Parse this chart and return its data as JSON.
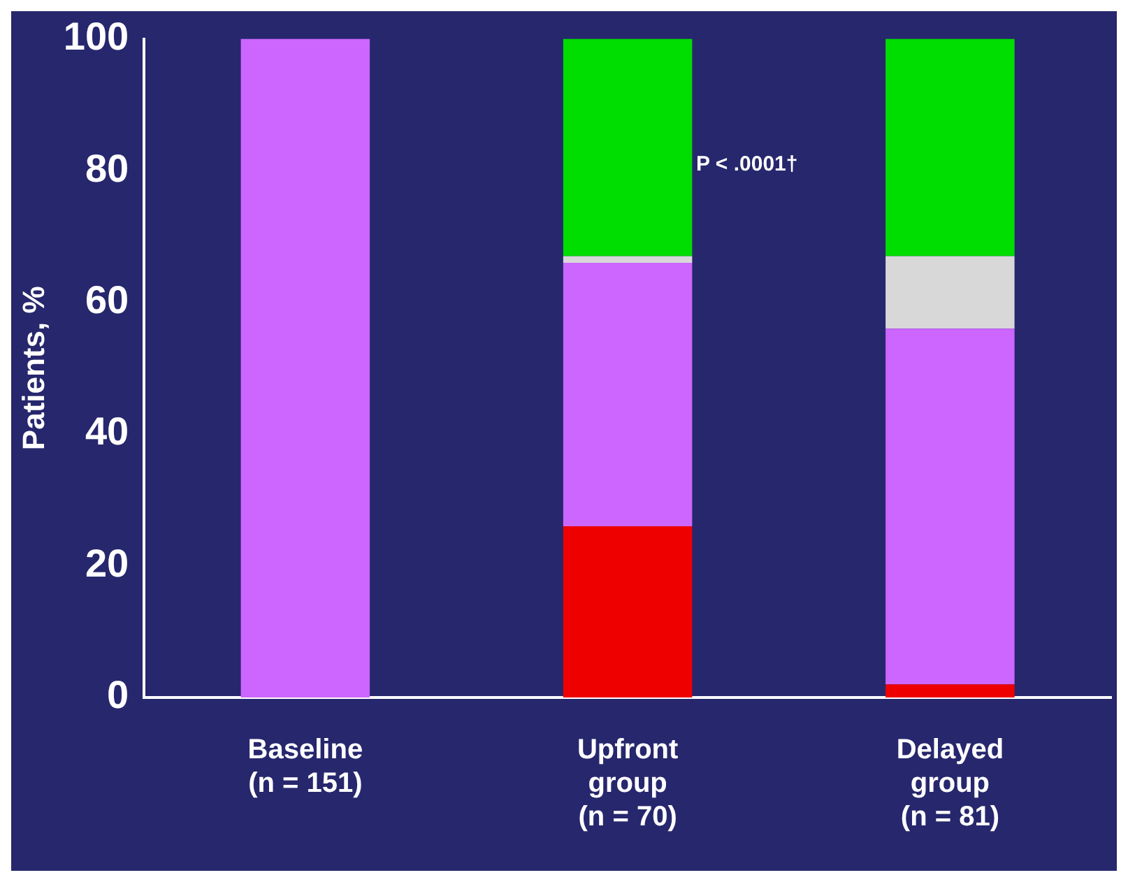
{
  "chart_data": {
    "type": "bar",
    "ylabel": "Patients, %",
    "categories": [
      "Baseline\n(n = 151)",
      "Upfront\ngroup\n(n = 70)",
      "Delayed\ngroup\n(n = 81)"
    ],
    "stacked": true,
    "series": [
      {
        "color": "#ee0000",
        "values": [
          0,
          26,
          2
        ]
      },
      {
        "color": "#cc66ff",
        "values": [
          100,
          40,
          54
        ]
      },
      {
        "color": "#d8d8d8",
        "values": [
          0,
          1,
          11
        ]
      },
      {
        "color": "#00dd00",
        "values": [
          0,
          33,
          33
        ]
      }
    ],
    "ylim": [
      0,
      100
    ],
    "yticks": [
      0,
      20,
      40,
      60,
      80,
      100
    ],
    "grid": false,
    "legend": false,
    "annotations": [
      "P < .0001†"
    ]
  }
}
